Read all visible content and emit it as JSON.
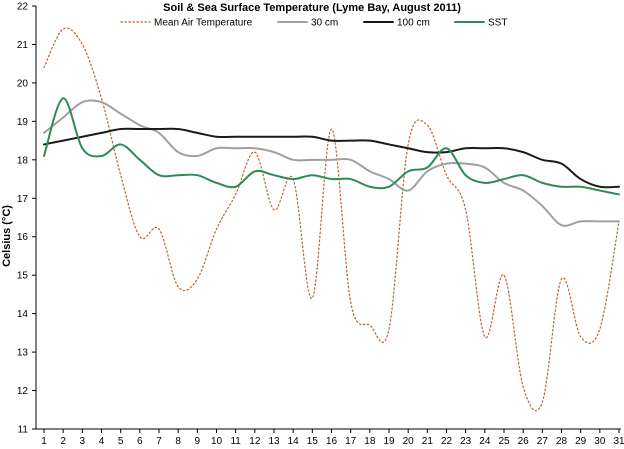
{
  "chart_data": {
    "type": "line",
    "title": "Soil & Sea Surface Temperature (Lyme Bay, August 2011)",
    "xlabel": "",
    "ylabel": "Celsius (°C)",
    "x": [
      1,
      2,
      3,
      4,
      5,
      6,
      7,
      8,
      9,
      10,
      11,
      12,
      13,
      14,
      15,
      16,
      17,
      18,
      19,
      20,
      21,
      22,
      23,
      24,
      25,
      26,
      27,
      28,
      29,
      30,
      31
    ],
    "xlim": [
      1,
      31
    ],
    "ylim": [
      11,
      22
    ],
    "yticks": [
      11,
      12,
      13,
      14,
      15,
      16,
      17,
      18,
      19,
      20,
      21,
      22
    ],
    "xticks": [
      "1",
      "2",
      "3",
      "4",
      "5",
      "6",
      "7",
      "8",
      "9",
      "10",
      "11",
      "12",
      "13",
      "14",
      "15",
      "16",
      "17",
      "18",
      "19",
      "20",
      "21",
      "22",
      "23",
      "24",
      "25",
      "26",
      "27",
      "28",
      "29",
      "30",
      "31"
    ],
    "grid": false,
    "legend_position": "top",
    "series": [
      {
        "name": "Mean Air Temperature",
        "color": "#c0622f",
        "style": "dotted",
        "values": [
          20.4,
          21.4,
          21.0,
          19.6,
          17.6,
          16.0,
          16.2,
          14.7,
          14.9,
          16.2,
          17.1,
          18.2,
          16.7,
          17.5,
          14.4,
          18.8,
          14.3,
          13.7,
          13.6,
          18.4,
          18.9,
          17.6,
          16.7,
          13.4,
          15.0,
          12.1,
          11.7,
          14.9,
          13.4,
          13.6,
          16.4
        ]
      },
      {
        "name": "30 cm",
        "color": "#a0a0a0",
        "style": "solid",
        "values": [
          18.7,
          19.1,
          19.5,
          19.5,
          19.2,
          18.9,
          18.7,
          18.2,
          18.1,
          18.3,
          18.3,
          18.3,
          18.2,
          18.0,
          18.0,
          18.0,
          18.0,
          17.7,
          17.5,
          17.2,
          17.7,
          17.9,
          17.9,
          17.8,
          17.4,
          17.2,
          16.8,
          16.3,
          16.4,
          16.4,
          16.4
        ]
      },
      {
        "name": "100 cm",
        "color": "#1a1a1a",
        "style": "solid",
        "values": [
          18.4,
          18.5,
          18.6,
          18.7,
          18.8,
          18.8,
          18.8,
          18.8,
          18.7,
          18.6,
          18.6,
          18.6,
          18.6,
          18.6,
          18.6,
          18.5,
          18.5,
          18.5,
          18.4,
          18.3,
          18.2,
          18.2,
          18.3,
          18.3,
          18.3,
          18.2,
          18.0,
          17.9,
          17.5,
          17.3,
          17.3
        ]
      },
      {
        "name": "SST",
        "color": "#2e8b57",
        "style": "solid",
        "values": [
          18.1,
          19.6,
          18.3,
          18.1,
          18.4,
          18.0,
          17.6,
          17.6,
          17.6,
          17.4,
          17.3,
          17.7,
          17.6,
          17.5,
          17.6,
          17.5,
          17.5,
          17.3,
          17.3,
          17.7,
          17.8,
          18.3,
          17.6,
          17.4,
          17.5,
          17.6,
          17.4,
          17.3,
          17.3,
          17.2,
          17.1
        ]
      }
    ]
  }
}
